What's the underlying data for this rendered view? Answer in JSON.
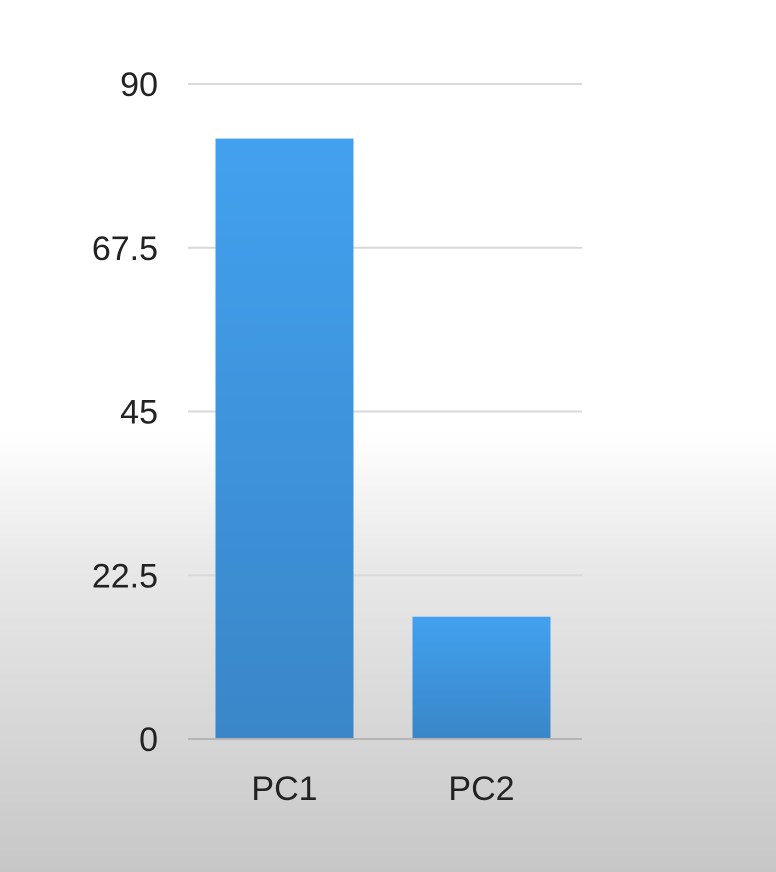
{
  "chart_data": {
    "type": "bar",
    "categories": [
      "PC1",
      "PC2"
    ],
    "values": [
      82.5,
      16.8
    ],
    "ylim": [
      0,
      90
    ],
    "yticks": [
      "0",
      "22.5",
      "45",
      "67.5",
      "90"
    ],
    "grid": true,
    "title": "",
    "xlabel": "",
    "ylabel": ""
  },
  "colors": {
    "bar_top": "#42a1ef",
    "bar_bottom": "#3a86c8",
    "gridline": "#d9d9d9",
    "axis": "#b5b5b5",
    "text": "#222222"
  }
}
